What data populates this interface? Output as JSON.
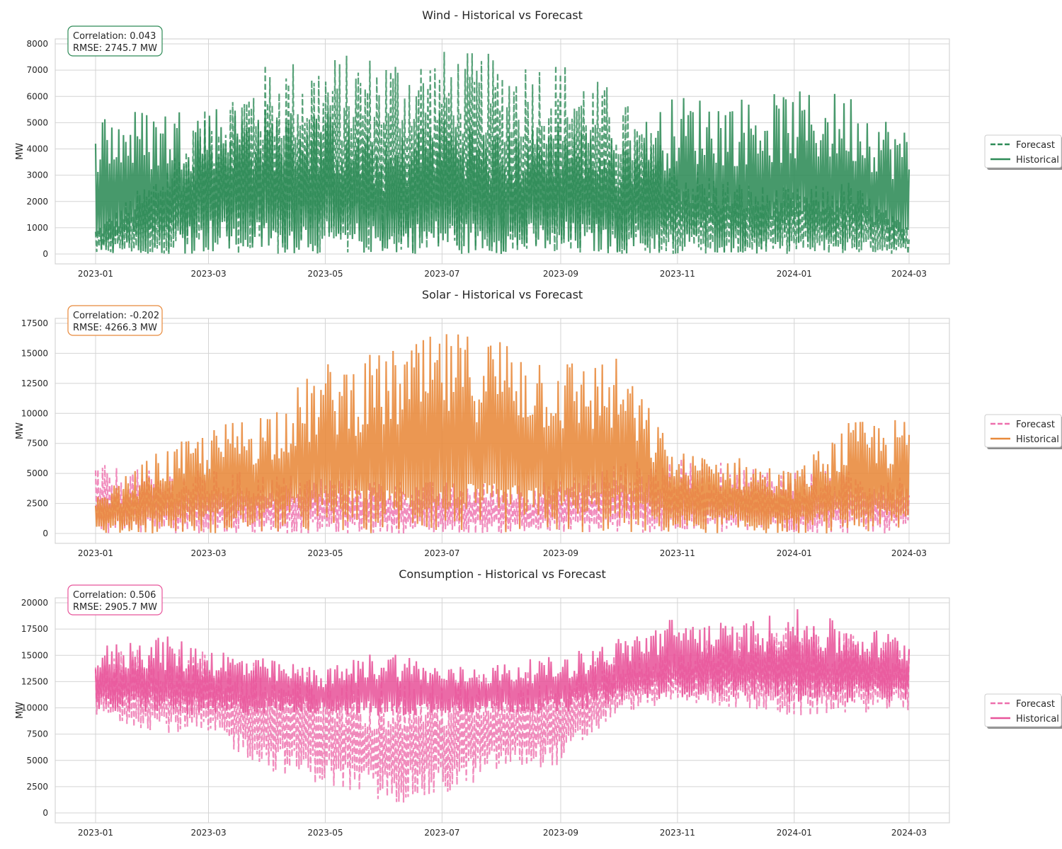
{
  "chart_data": [
    {
      "type": "line",
      "title": "Wind - Historical vs Forecast",
      "ylabel": "MW",
      "ylim": [
        0,
        8000
      ],
      "yticks": [
        0,
        1000,
        2000,
        3000,
        4000,
        5000,
        6000,
        7000,
        8000
      ],
      "xlim": [
        "2023-01-01",
        "2024-03-01"
      ],
      "xticks": [
        "2023-01",
        "2023-03",
        "2023-05",
        "2023-07",
        "2023-09",
        "2023-11",
        "2024-01",
        "2024-03"
      ],
      "grid": true,
      "legend_position": "right",
      "stats": {
        "correlation": "Correlation: 0.043",
        "rmse": "RMSE: 2745.7 MW"
      },
      "stats_border_color": "#2e8b57",
      "series": [
        {
          "name": "Forecast",
          "style": "dashed",
          "color": "#2e8b57",
          "monthly_low": [
            0,
            0,
            0,
            0,
            0,
            0,
            0,
            0,
            0,
            0,
            0,
            0,
            0,
            0,
            0
          ],
          "monthly_high": [
            1000,
            3000,
            5800,
            7400,
            7600,
            7700,
            7800,
            7600,
            7500,
            6200,
            3500,
            2800,
            2500,
            2800,
            1000
          ]
        },
        {
          "name": "Historical",
          "style": "solid",
          "color": "#2e8b57",
          "monthly_low": [
            0,
            0,
            0,
            0,
            0,
            0,
            0,
            0,
            0,
            0,
            0,
            0,
            0,
            0,
            0
          ],
          "monthly_high": [
            5500,
            5600,
            5800,
            5600,
            5500,
            4200,
            5600,
            4500,
            5200,
            4400,
            6100,
            6000,
            6200,
            6200,
            4700
          ]
        }
      ]
    },
    {
      "type": "line",
      "title": "Solar - Historical vs Forecast",
      "ylabel": "MW",
      "ylim": [
        0,
        17500
      ],
      "yticks": [
        0,
        2500,
        5000,
        7500,
        10000,
        12500,
        15000,
        17500
      ],
      "xlim": [
        "2023-01-01",
        "2024-03-01"
      ],
      "xticks": [
        "2023-01",
        "2023-03",
        "2023-05",
        "2023-07",
        "2023-09",
        "2023-11",
        "2024-01",
        "2024-03"
      ],
      "grid": true,
      "legend_position": "right",
      "stats": {
        "correlation": "Correlation: -0.202",
        "rmse": "RMSE: 4266.3 MW"
      },
      "stats_border_color": "#e8893a",
      "series": [
        {
          "name": "Forecast",
          "style": "dashed",
          "color": "#ee6fad",
          "monthly_low": [
            0,
            0,
            0,
            0,
            0,
            0,
            0,
            0,
            0,
            0,
            0,
            0,
            0,
            0,
            0
          ],
          "monthly_high": [
            5800,
            5200,
            5300,
            5000,
            4800,
            4500,
            4300,
            4200,
            4500,
            6000,
            6300,
            5800,
            5300,
            5200,
            5100
          ]
        },
        {
          "name": "Historical",
          "style": "solid",
          "color": "#e8893a",
          "monthly_low": [
            0,
            0,
            0,
            0,
            0,
            0,
            0,
            0,
            0,
            0,
            0,
            0,
            0,
            0,
            0
          ],
          "monthly_high": [
            2900,
            6600,
            8800,
            10700,
            14300,
            15200,
            16800,
            16800,
            14800,
            14700,
            6800,
            6500,
            5200,
            9400,
            9600
          ]
        }
      ]
    },
    {
      "type": "line",
      "title": "Consumption - Historical vs Forecast",
      "ylabel": "MW",
      "ylim": [
        0,
        20000
      ],
      "yticks": [
        0,
        2500,
        5000,
        7500,
        10000,
        12500,
        15000,
        17500,
        20000
      ],
      "xlim": [
        "2023-01-01",
        "2024-03-01"
      ],
      "xticks": [
        "2023-01",
        "2023-03",
        "2023-05",
        "2023-07",
        "2023-09",
        "2023-11",
        "2024-01",
        "2024-03"
      ],
      "grid": true,
      "legend_position": "right",
      "stats": {
        "correlation": "Correlation: 0.506",
        "rmse": "RMSE: 2905.7 MW"
      },
      "stats_border_color": "#e8559b",
      "series": [
        {
          "name": "Forecast",
          "style": "dashed",
          "color": "#ee6fad",
          "monthly_low": [
            9000,
            7800,
            7000,
            4000,
            2500,
            700,
            1500,
            4000,
            4500,
            9500,
            10500,
            10000,
            9000,
            9500,
            9700
          ],
          "monthly_high": [
            15000,
            16000,
            15500,
            14000,
            13500,
            13500,
            13000,
            13500,
            14000,
            15000,
            16000,
            17000,
            18000,
            17000,
            16500
          ]
        },
        {
          "name": "Historical",
          "style": "solid",
          "color": "#e8559b",
          "monthly_low": [
            9500,
            9500,
            9000,
            9500,
            9500,
            9000,
            9500,
            9500,
            9500,
            10500,
            11000,
            11000,
            10500,
            10500,
            10500
          ],
          "monthly_high": [
            15800,
            17100,
            15900,
            14600,
            13800,
            15800,
            13900,
            14300,
            15000,
            16700,
            18800,
            18000,
            19500,
            18000,
            17000
          ]
        }
      ]
    }
  ]
}
